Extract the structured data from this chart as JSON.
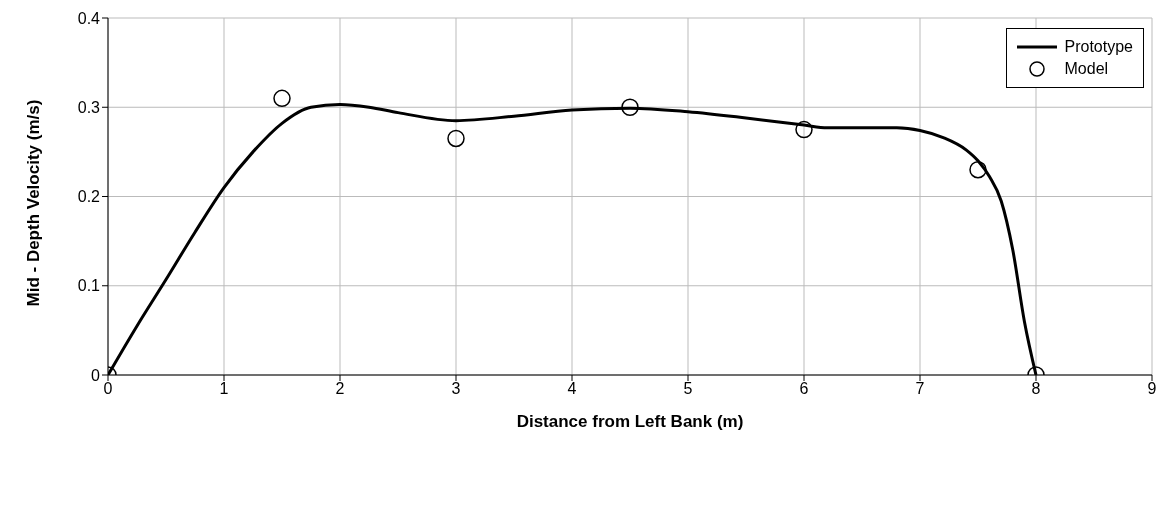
{
  "chart_data": {
    "type": "line",
    "xlabel": "Distance from Left Bank (m)",
    "ylabel": "Mid - Depth Velocity (m/s)",
    "xlim": [
      0,
      9
    ],
    "xticks": [
      0,
      1,
      2,
      3,
      4,
      5,
      6,
      7,
      8,
      9
    ],
    "ylim": [
      0,
      0.4
    ],
    "yticks": [
      0,
      0.1,
      0.2,
      0.3,
      0.4
    ],
    "grid": true,
    "legend": "top right",
    "series": [
      {
        "name": "Prototype",
        "type": "line",
        "color": "#000000",
        "marker": "none",
        "line_style": "solid",
        "x": [
          0,
          0.25,
          0.5,
          0.75,
          1,
          1.25,
          1.5,
          1.75,
          2,
          2.25,
          2.5,
          3,
          3.5,
          4,
          4.5,
          5,
          5.5,
          6,
          6.2,
          6.8,
          7,
          7.2,
          7.4,
          7.5,
          7.6,
          7.7,
          7.8,
          7.9,
          8
        ],
        "values": [
          0,
          0.055,
          0.107,
          0.16,
          0.21,
          0.25,
          0.282,
          0.3,
          0.303,
          0.3,
          0.294,
          0.285,
          0.29,
          0.297,
          0.299,
          0.295,
          0.288,
          0.28,
          0.277,
          0.277,
          0.274,
          0.266,
          0.252,
          0.24,
          0.222,
          0.195,
          0.14,
          0.06,
          0
        ]
      },
      {
        "name": "Model",
        "type": "scatter",
        "color": "#000000",
        "marker": "circle",
        "x": [
          0,
          1.5,
          3,
          4.5,
          6,
          7.5,
          8
        ],
        "values": [
          0,
          0.31,
          0.265,
          0.3,
          0.275,
          0.23,
          0
        ]
      }
    ]
  }
}
